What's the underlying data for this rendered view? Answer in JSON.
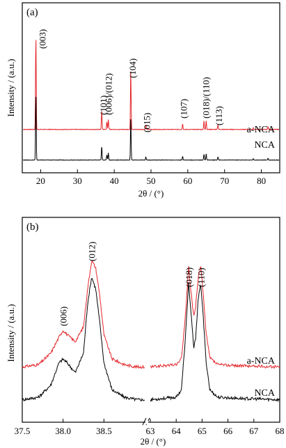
{
  "chart_data": [
    {
      "panel": "(a)",
      "type": "line",
      "xlabel": "2θ / (°)",
      "ylabel": "Intensity / (a.u.)",
      "xlim": [
        15,
        85
      ],
      "xticks": [
        "20",
        "30",
        "40",
        "50",
        "60",
        "70",
        "80"
      ],
      "series": [
        {
          "name": "a-NCA",
          "color": "#e3262b",
          "baseline_frac": 0.255,
          "scale": 0.54
        },
        {
          "name": "NCA",
          "color": "#000000",
          "baseline_frac": 0.075,
          "scale": 0.38
        }
      ],
      "peaks": [
        {
          "x": 18.7,
          "h": 1.0,
          "label": "(003)"
        },
        {
          "x": 36.6,
          "h": 0.21,
          "label": "(101)"
        },
        {
          "x": 38.0,
          "h": 0.08,
          "label": "(006)/(012)"
        },
        {
          "x": 38.4,
          "h": 0.11,
          "label": ""
        },
        {
          "x": 44.5,
          "h": 0.65,
          "label": "(104)"
        },
        {
          "x": 48.6,
          "h": 0.05,
          "label": "(015)"
        },
        {
          "x": 58.6,
          "h": 0.06,
          "label": "(107)"
        },
        {
          "x": 64.4,
          "h": 0.09,
          "label": "(018)/(110)"
        },
        {
          "x": 65.0,
          "h": 0.1,
          "label": ""
        },
        {
          "x": 68.2,
          "h": 0.05,
          "label": "(113)"
        },
        {
          "x": 77.8,
          "h": 0.02,
          "label": ""
        },
        {
          "x": 81.8,
          "h": 0.03,
          "label": ""
        }
      ]
    },
    {
      "panel": "(b)",
      "type": "line",
      "xlabel": "2θ / (°)",
      "ylabel": "Intensity / (a.u.)",
      "broken_axis": true,
      "segments": [
        {
          "xlim": [
            37.5,
            39.0
          ],
          "xticks": [
            "37.5",
            "38.0",
            "38.5"
          ]
        },
        {
          "xlim": [
            63,
            68
          ],
          "xticks": [
            "63",
            "64",
            "65",
            "66",
            "67",
            "68"
          ]
        }
      ],
      "series": [
        {
          "name": "a-NCA",
          "color": "#e3262b",
          "seg1": [
            [
              37.5,
              0.0
            ],
            [
              37.7,
              0.02
            ],
            [
              37.85,
              0.12
            ],
            [
              37.95,
              0.26
            ],
            [
              38.0,
              0.32
            ],
            [
              38.05,
              0.28
            ],
            [
              38.15,
              0.22
            ],
            [
              38.25,
              0.35
            ],
            [
              38.3,
              0.68
            ],
            [
              38.35,
              0.93
            ],
            [
              38.4,
              0.86
            ],
            [
              38.45,
              0.62
            ],
            [
              38.5,
              0.28
            ],
            [
              38.6,
              0.07
            ],
            [
              38.75,
              0.02
            ],
            [
              38.9,
              0.0
            ]
          ],
          "seg2": [
            [
              63.0,
              0.0
            ],
            [
              63.5,
              0.01
            ],
            [
              64.0,
              0.02
            ],
            [
              64.2,
              0.07
            ],
            [
              64.35,
              0.42
            ],
            [
              64.48,
              0.88
            ],
            [
              64.55,
              0.7
            ],
            [
              64.68,
              0.44
            ],
            [
              64.75,
              0.52
            ],
            [
              64.85,
              0.78
            ],
            [
              64.95,
              0.88
            ],
            [
              65.05,
              0.62
            ],
            [
              65.15,
              0.3
            ],
            [
              65.3,
              0.08
            ],
            [
              65.6,
              0.02
            ],
            [
              66.5,
              0.01
            ],
            [
              68.0,
              0.0
            ]
          ]
        },
        {
          "name": "NCA",
          "color": "#000000",
          "seg1": [
            [
              37.5,
              0.0
            ],
            [
              37.7,
              0.02
            ],
            [
              37.85,
              0.12
            ],
            [
              37.95,
              0.3
            ],
            [
              38.0,
              0.33
            ],
            [
              38.05,
              0.3
            ],
            [
              38.15,
              0.22
            ],
            [
              38.25,
              0.38
            ],
            [
              38.3,
              0.78
            ],
            [
              38.35,
              1.0
            ],
            [
              38.4,
              0.9
            ],
            [
              38.45,
              0.62
            ],
            [
              38.5,
              0.3
            ],
            [
              38.6,
              0.08
            ],
            [
              38.75,
              0.02
            ],
            [
              38.9,
              0.0
            ]
          ],
          "seg2": [
            [
              63.0,
              0.0
            ],
            [
              63.5,
              0.01
            ],
            [
              64.0,
              0.02
            ],
            [
              64.2,
              0.08
            ],
            [
              64.35,
              0.48
            ],
            [
              64.48,
              0.96
            ],
            [
              64.55,
              0.76
            ],
            [
              64.68,
              0.42
            ],
            [
              64.75,
              0.5
            ],
            [
              64.85,
              0.82
            ],
            [
              64.95,
              0.94
            ],
            [
              65.05,
              0.66
            ],
            [
              65.15,
              0.32
            ],
            [
              65.3,
              0.08
            ],
            [
              65.6,
              0.02
            ],
            [
              66.5,
              0.01
            ],
            [
              68.0,
              0.0
            ]
          ]
        }
      ],
      "peak_labels": [
        {
          "seg": 1,
          "x": 38.0,
          "label": "(006)"
        },
        {
          "seg": 1,
          "x": 38.35,
          "label": "(012)"
        },
        {
          "seg": 2,
          "x": 64.48,
          "label": "(018)"
        },
        {
          "seg": 2,
          "x": 64.95,
          "label": "(110)"
        }
      ]
    }
  ]
}
